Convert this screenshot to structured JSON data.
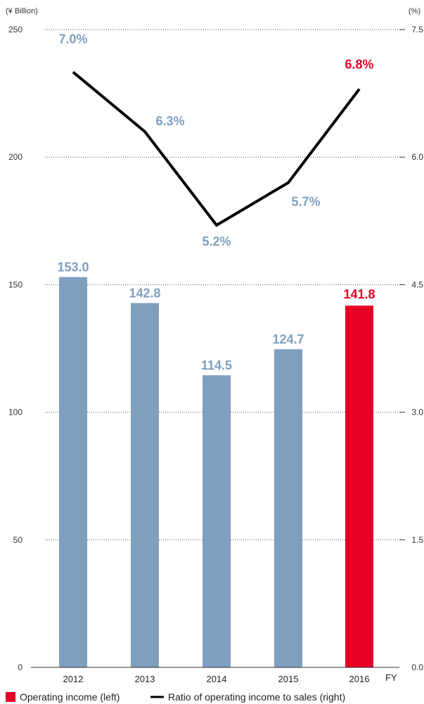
{
  "chart_data": {
    "type": "bar",
    "categories": [
      "2012",
      "2013",
      "2014",
      "2015",
      "2016"
    ],
    "xlabel": "FY",
    "left_axis": {
      "unit": "(¥ Billion)",
      "ylim": [
        0,
        250
      ],
      "ticks": [
        0,
        50,
        100,
        150,
        200,
        250
      ],
      "tick_labels": [
        "0",
        "50",
        "100",
        "150",
        "200",
        "250"
      ]
    },
    "right_axis": {
      "unit": "(%)",
      "ylim": [
        0,
        7.5
      ],
      "ticks": [
        0,
        1.5,
        3.0,
        4.5,
        6.0,
        7.5
      ],
      "tick_labels": [
        "0.0",
        "1.5",
        "3.0",
        "4.5",
        "6.0",
        "7.5"
      ]
    },
    "series": [
      {
        "name": "Operating income (left)",
        "kind": "bar",
        "axis": "left",
        "values": [
          153.0,
          142.8,
          114.5,
          124.7,
          141.8
        ],
        "labels": [
          "153.0",
          "142.8",
          "114.5",
          "124.7",
          "141.8"
        ]
      },
      {
        "name": "Ratio of operating income to sales (right)",
        "kind": "line",
        "axis": "right",
        "values": [
          7.0,
          6.3,
          5.2,
          5.7,
          6.8
        ],
        "labels": [
          "7.0%",
          "6.3%",
          "5.2%",
          "5.7%",
          "6.8%"
        ]
      }
    ],
    "grid": "dotted horizontal",
    "legend": "bottom-left",
    "colors": {
      "bar": "#7f9fbf",
      "highlight": "#e60026",
      "line": "#000000",
      "label": "#7f9fbf"
    }
  }
}
